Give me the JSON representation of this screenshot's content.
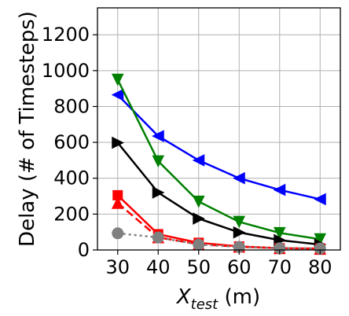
{
  "chart_data": {
    "type": "line",
    "x": [
      30,
      40,
      50,
      60,
      70,
      80
    ],
    "xlim": [
      25,
      85
    ],
    "ylim": [
      0,
      1350
    ],
    "x_ticks": [
      "30",
      "40",
      "50",
      "60",
      "70",
      "80"
    ],
    "y_ticks": [
      "0",
      "200",
      "400",
      "600",
      "800",
      "1000",
      "1200"
    ],
    "y_tick_values": [
      0,
      200,
      400,
      600,
      800,
      1000,
      1200
    ],
    "xlabel_main": "X",
    "xlabel_sub": "test",
    "xlabel_unit": " (m)",
    "ylabel": "Delay (# of Timesteps)",
    "grid": true,
    "series": [
      {
        "color": "#0000ff",
        "marker": "triangle-left",
        "dash": "solid",
        "values": [
          865,
          635,
          500,
          400,
          335,
          283
        ]
      },
      {
        "color": "#008000",
        "marker": "triangle-down",
        "dash": "solid",
        "values": [
          950,
          495,
          270,
          157,
          95,
          60
        ]
      },
      {
        "color": "#000000",
        "marker": "triangle-right",
        "dash": "solid",
        "values": [
          598,
          320,
          175,
          98,
          55,
          30
        ]
      },
      {
        "color": "#ff0000",
        "marker": "square",
        "dash": "solid",
        "values": [
          305,
          88,
          40,
          20,
          10,
          8
        ]
      },
      {
        "color": "#ff0000",
        "marker": "triangle-up",
        "dash": "dashed",
        "values": [
          262,
          70,
          32,
          18,
          10,
          6
        ]
      },
      {
        "color": "#808080",
        "marker": "circle",
        "dash": "dotted",
        "values": [
          93,
          70,
          30,
          17,
          10,
          8
        ]
      }
    ]
  }
}
